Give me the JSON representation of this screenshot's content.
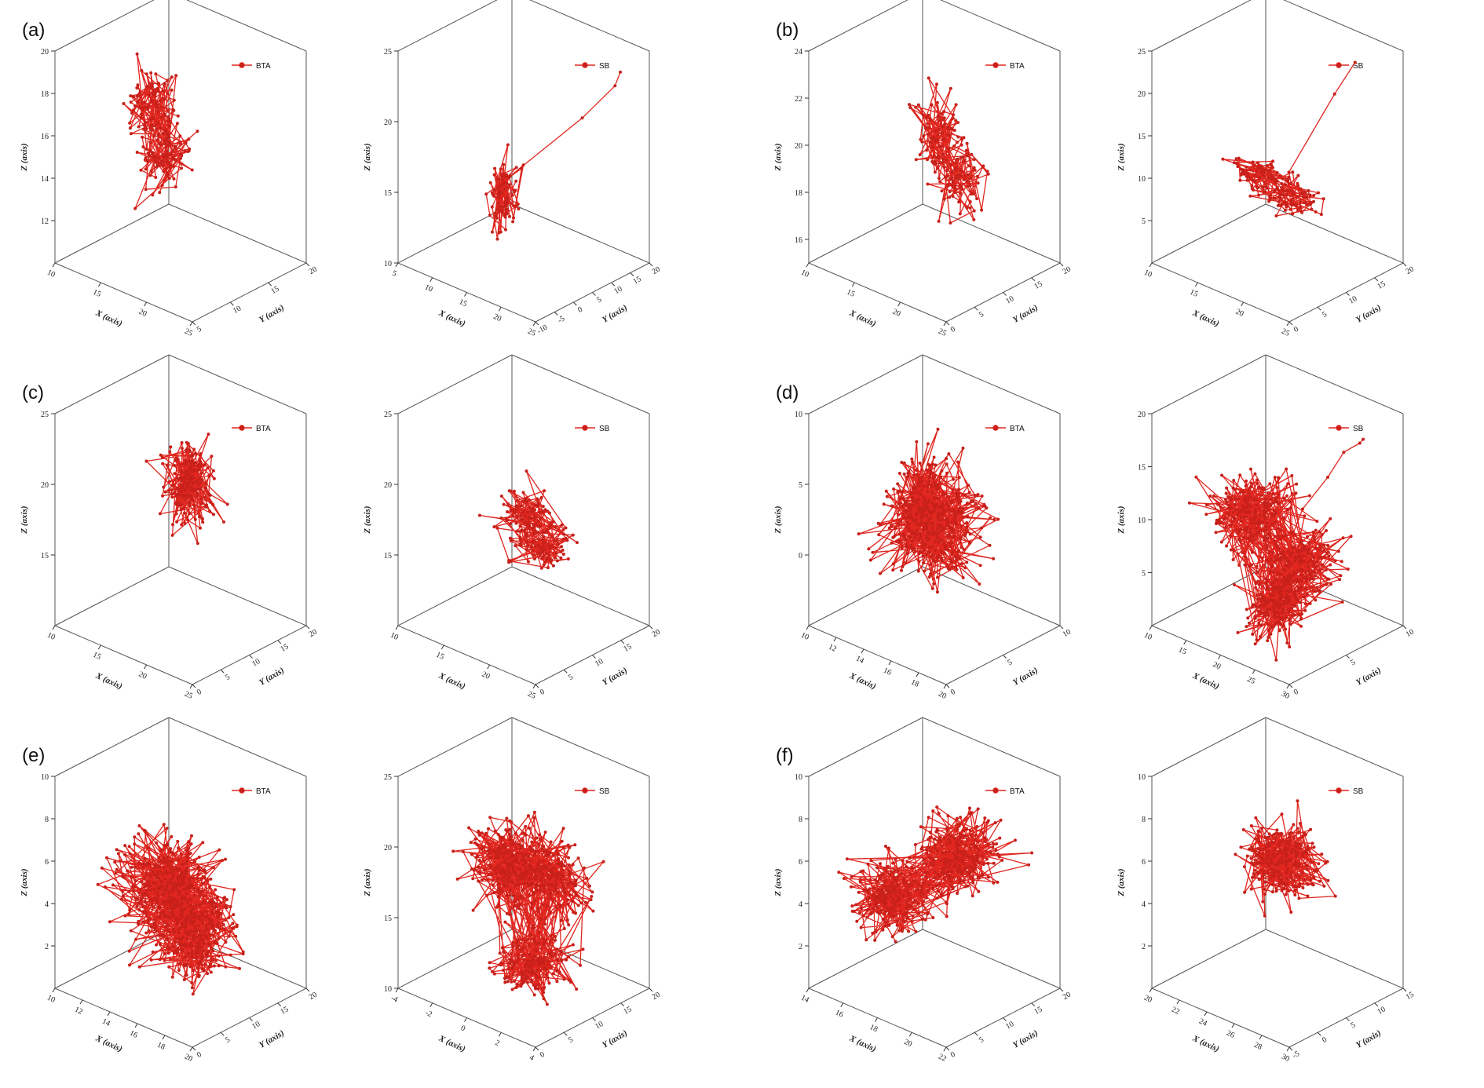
{
  "figure": {
    "series_color": "#e0261f",
    "point_color": "#c8201a",
    "panel_letters": [
      "(a)",
      "(b)",
      "(c)",
      "(d)",
      "(e)",
      "(f)"
    ]
  },
  "chart_data": [
    {
      "panel": "(a)",
      "type": "scatter3d-trajectory",
      "legend": "BTA",
      "grid": false,
      "xlabel": "X (axis)",
      "ylabel": "Y (axis)",
      "zlabel": "Z (axis)",
      "z_ticks": [
        "12",
        "14",
        "16",
        "18",
        "20"
      ],
      "x_ticks": [
        "10",
        "15",
        "20",
        "25"
      ],
      "y_ticks": [
        "5",
        "10",
        "15",
        "20"
      ],
      "xlim": [
        10,
        25
      ],
      "ylim": [
        5,
        20
      ],
      "zlim": [
        10,
        20
      ],
      "clusters": [
        {
          "x": 14.5,
          "y": 12.5,
          "z": 16.8,
          "n": 110,
          "sx": 1.2,
          "sy": 1.0,
          "sz": 1.0
        },
        {
          "x": 17.0,
          "y": 11.0,
          "z": 15.2,
          "n": 90,
          "sx": 1.2,
          "sy": 1.0,
          "sz": 0.6
        }
      ],
      "tail": []
    },
    {
      "panel": "(a)",
      "type": "scatter3d-trajectory",
      "legend": "SB",
      "grid": false,
      "xlabel": "X (axis)",
      "ylabel": "Y (axis)",
      "zlabel": "Z (axis)",
      "z_ticks": [
        "10",
        "15",
        "20",
        "25"
      ],
      "x_ticks": [
        "5",
        "10",
        "15",
        "20",
        "25"
      ],
      "y_ticks": [
        "-10",
        "-5",
        "0",
        "5",
        "10",
        "15",
        "20"
      ],
      "xlim": [
        5,
        25
      ],
      "ylim": [
        -10,
        20
      ],
      "zlim": [
        10,
        25
      ],
      "clusters": [
        {
          "x": 12.0,
          "y": 5.0,
          "z": 14.0,
          "n": 90,
          "sx": 0.6,
          "sy": 1.5,
          "sz": 1.2
        }
      ],
      "tail": [
        [
          12.5,
          6,
          15.5
        ],
        [
          18,
          15,
          19.5
        ],
        [
          20,
          20,
          21.5
        ],
        [
          20.5,
          20.5,
          22.5
        ]
      ]
    },
    {
      "panel": "(b)",
      "type": "scatter3d-trajectory",
      "legend": "BTA",
      "grid": false,
      "xlabel": "X (axis)",
      "ylabel": "Y (axis)",
      "zlabel": "Z (axis)",
      "z_ticks": [
        "16",
        "18",
        "20",
        "22",
        "24"
      ],
      "x_ticks": [
        "10",
        "15",
        "20",
        "25"
      ],
      "y_ticks": [
        "0",
        "5",
        "10",
        "15",
        "20"
      ],
      "xlim": [
        10,
        25
      ],
      "ylim": [
        0,
        20
      ],
      "zlim": [
        15,
        24
      ],
      "clusters": [
        {
          "x": 17.0,
          "y": 12.0,
          "z": 20.0,
          "n": 90,
          "sx": 1.0,
          "sy": 1.2,
          "sz": 0.8
        },
        {
          "x": 19.0,
          "y": 12.0,
          "z": 18.5,
          "n": 80,
          "sx": 1.0,
          "sy": 1.3,
          "sz": 0.7
        }
      ],
      "tail": []
    },
    {
      "panel": "(b)",
      "type": "scatter3d-trajectory",
      "legend": "SB",
      "grid": false,
      "xlabel": "X (axis)",
      "ylabel": "Y (axis)",
      "zlabel": "Z (axis)",
      "z_ticks": [
        "5",
        "10",
        "15",
        "20",
        "25"
      ],
      "x_ticks": [
        "10",
        "15",
        "20",
        "25"
      ],
      "y_ticks": [
        "0",
        "5",
        "10",
        "15",
        "20"
      ],
      "xlim": [
        10,
        25
      ],
      "ylim": [
        0,
        20
      ],
      "zlim": [
        0,
        25
      ],
      "clusters": [
        {
          "x": 15.0,
          "y": 11.0,
          "z": 9.0,
          "n": 80,
          "sx": 1.5,
          "sy": 1.2,
          "sz": 0.8
        },
        {
          "x": 19.0,
          "y": 10.0,
          "z": 8.5,
          "n": 90,
          "sx": 1.5,
          "sy": 1.5,
          "sz": 0.8
        }
      ],
      "tail": [
        [
          17.5,
          12,
          10
        ],
        [
          20,
          16,
          19
        ],
        [
          21,
          18,
          22.5
        ]
      ]
    },
    {
      "panel": "(c)",
      "type": "scatter3d-trajectory",
      "legend": "BTA",
      "grid": false,
      "xlabel": "X (axis)",
      "ylabel": "Y (axis)",
      "zlabel": "Z (axis)",
      "z_ticks": [
        "15",
        "20",
        "25"
      ],
      "x_ticks": [
        "10",
        "15",
        "20",
        "25"
      ],
      "y_ticks": [
        "0",
        "5",
        "10",
        "15",
        "20"
      ],
      "xlim": [
        10,
        25
      ],
      "ylim": [
        0,
        20
      ],
      "zlim": [
        10,
        25
      ],
      "clusters": [
        {
          "x": 17.0,
          "y": 12.0,
          "z": 19.5,
          "n": 200,
          "sx": 1.0,
          "sy": 1.5,
          "sz": 1.3
        }
      ],
      "tail": []
    },
    {
      "panel": "(c)",
      "type": "scatter3d-trajectory",
      "legend": "SB",
      "grid": false,
      "xlabel": "X (axis)",
      "ylabel": "Y (axis)",
      "zlabel": "Z (axis)",
      "z_ticks": [
        "15",
        "20",
        "25"
      ],
      "x_ticks": [
        "10",
        "15",
        "20",
        "25"
      ],
      "y_ticks": [
        "0",
        "5",
        "10",
        "15",
        "20"
      ],
      "xlim": [
        10,
        25
      ],
      "ylim": [
        0,
        20
      ],
      "zlim": [
        10,
        25
      ],
      "clusters": [
        {
          "x": 17.5,
          "y": 11.0,
          "z": 17.5,
          "n": 100,
          "sx": 1.3,
          "sy": 1.3,
          "sz": 1.0
        },
        {
          "x": 19.5,
          "y": 10.0,
          "z": 16.0,
          "n": 90,
          "sx": 1.5,
          "sy": 1.5,
          "sz": 0.6
        }
      ],
      "tail": []
    },
    {
      "panel": "(d)",
      "type": "scatter3d-trajectory",
      "legend": "BTA",
      "grid": false,
      "xlabel": "X (axis)",
      "ylabel": "Y (axis)",
      "zlabel": "Z (axis)",
      "z_ticks": [
        "0",
        "5",
        "10"
      ],
      "x_ticks": [
        "10",
        "12",
        "14",
        "16",
        "18",
        "20"
      ],
      "y_ticks": [
        "0",
        "5",
        "10"
      ],
      "xlim": [
        10,
        20
      ],
      "ylim": [
        0,
        10
      ],
      "zlim": [
        -5,
        10
      ],
      "clusters": [
        {
          "x": 13.5,
          "y": 5.5,
          "z": 2.5,
          "n": 230,
          "sx": 0.8,
          "sy": 1.3,
          "sz": 1.8
        },
        {
          "x": 15.5,
          "y": 5.0,
          "z": 2.0,
          "n": 230,
          "sx": 1.0,
          "sy": 1.3,
          "sz": 1.8
        }
      ],
      "tail": []
    },
    {
      "panel": "(d)",
      "type": "scatter3d-trajectory",
      "legend": "SB",
      "grid": false,
      "xlabel": "X (axis)",
      "ylabel": "Y (axis)",
      "zlabel": "Z (axis)",
      "z_ticks": [
        "5",
        "10",
        "15",
        "20"
      ],
      "x_ticks": [
        "10",
        "15",
        "20",
        "25",
        "30"
      ],
      "y_ticks": [
        "0",
        "5",
        "10"
      ],
      "xlim": [
        10,
        30
      ],
      "ylim": [
        0,
        10
      ],
      "zlim": [
        0,
        20
      ],
      "clusters": [
        {
          "x": 16.0,
          "y": 5.0,
          "z": 9.5,
          "n": 220,
          "sx": 2.0,
          "sy": 1.3,
          "sz": 1.5
        },
        {
          "x": 23.0,
          "y": 5.0,
          "z": 6.5,
          "n": 220,
          "sx": 2.0,
          "sy": 1.3,
          "sz": 1.5
        },
        {
          "x": 20.0,
          "y": 5.0,
          "z": 2.0,
          "n": 180,
          "sx": 1.5,
          "sy": 1.0,
          "sz": 1.3
        }
      ],
      "tail": [
        [
          22,
          6,
          11
        ],
        [
          24,
          7,
          14
        ],
        [
          25.5,
          7.5,
          16.5
        ],
        [
          27,
          8,
          17.5
        ],
        [
          27.5,
          8,
          18
        ]
      ]
    },
    {
      "panel": "(e)",
      "type": "scatter3d-trajectory",
      "legend": "BTA",
      "grid": false,
      "xlabel": "X (axis)",
      "ylabel": "Y (axis)",
      "zlabel": "Z (axis)",
      "z_ticks": [
        "2",
        "4",
        "6",
        "8",
        "10"
      ],
      "x_ticks": [
        "10",
        "12",
        "14",
        "16",
        "18",
        "20"
      ],
      "y_ticks": [
        "0",
        "5",
        "10",
        "15",
        "20"
      ],
      "xlim": [
        10,
        20
      ],
      "ylim": [
        0,
        20
      ],
      "zlim": [
        0,
        10
      ],
      "clusters": [
        {
          "x": 13.5,
          "y": 10.5,
          "z": 4.8,
          "n": 250,
          "sx": 1.3,
          "sy": 2.5,
          "sz": 0.9
        },
        {
          "x": 15.5,
          "y": 9.5,
          "z": 3.8,
          "n": 250,
          "sx": 1.3,
          "sy": 2.5,
          "sz": 0.9
        },
        {
          "x": 17.0,
          "y": 8.0,
          "z": 2.8,
          "n": 150,
          "sx": 1.0,
          "sy": 2.5,
          "sz": 0.9
        }
      ],
      "tail": []
    },
    {
      "panel": "(e)",
      "type": "scatter3d-trajectory",
      "legend": "SB",
      "grid": false,
      "xlabel": "X (axis)",
      "ylabel": "Y (axis)",
      "zlabel": "Z (axis)",
      "z_ticks": [
        "10",
        "15",
        "20",
        "25"
      ],
      "x_ticks": [
        "-4",
        "-2",
        "0",
        "2",
        "4"
      ],
      "y_ticks": [
        "0",
        "5",
        "10",
        "15",
        "20"
      ],
      "xlim": [
        -4,
        4
      ],
      "ylim": [
        0,
        20
      ],
      "zlim": [
        10,
        25
      ],
      "clusters": [
        {
          "x": -1.0,
          "y": 10.0,
          "z": 18.5,
          "n": 250,
          "sx": 0.8,
          "sy": 2.0,
          "sz": 1.3
        },
        {
          "x": 1.5,
          "y": 10.0,
          "z": 18.5,
          "n": 200,
          "sx": 0.9,
          "sy": 2.0,
          "sz": 1.3
        },
        {
          "x": 0.8,
          "y": 9.0,
          "z": 12.5,
          "n": 180,
          "sx": 0.7,
          "sy": 2.0,
          "sz": 1.0
        }
      ],
      "tail": []
    },
    {
      "panel": "(f)",
      "type": "scatter3d-trajectory",
      "legend": "BTA",
      "grid": false,
      "xlabel": "X (axis)",
      "ylabel": "Y (axis)",
      "zlabel": "Z (axis)",
      "z_ticks": [
        "2",
        "4",
        "6",
        "8",
        "10"
      ],
      "x_ticks": [
        "14",
        "16",
        "18",
        "20",
        "22"
      ],
      "y_ticks": [
        "0",
        "5",
        "10",
        "15",
        "20"
      ],
      "xlim": [
        14,
        22
      ],
      "ylim": [
        0,
        20
      ],
      "zlim": [
        0,
        10
      ],
      "clusters": [
        {
          "x": 16.0,
          "y": 9.0,
          "z": 3.8,
          "n": 250,
          "sx": 0.8,
          "sy": 2.5,
          "sz": 0.8
        },
        {
          "x": 18.5,
          "y": 13.0,
          "z": 6.0,
          "n": 250,
          "sx": 0.9,
          "sy": 2.5,
          "sz": 0.8
        }
      ],
      "tail": []
    },
    {
      "panel": "(f)",
      "type": "scatter3d-trajectory",
      "legend": "SB",
      "grid": false,
      "xlabel": "X (axis)",
      "ylabel": "Y (axis)",
      "zlabel": "Z (axis)",
      "z_ticks": [
        "2",
        "4",
        "6",
        "8",
        "10"
      ],
      "x_ticks": [
        "20",
        "22",
        "24",
        "26",
        "28",
        "30"
      ],
      "y_ticks": [
        "-5",
        "0",
        "5",
        "10",
        "15"
      ],
      "xlim": [
        20,
        30
      ],
      "ylim": [
        -5,
        15
      ],
      "zlim": [
        0,
        10
      ],
      "clusters": [
        {
          "x": 25.0,
          "y": 6.0,
          "z": 6.0,
          "n": 280,
          "sx": 0.9,
          "sy": 2.0,
          "sz": 0.8
        }
      ],
      "tail": []
    }
  ]
}
